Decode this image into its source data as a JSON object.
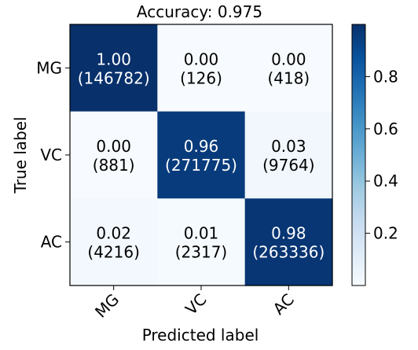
{
  "chart_data": {
    "type": "heatmap",
    "title": "Accuracy: 0.975",
    "xlabel": "Predicted label",
    "ylabel": "True label",
    "x_categories": [
      "MG",
      "VC",
      "AC"
    ],
    "y_categories": [
      "MG",
      "VC",
      "AC"
    ],
    "cells": [
      [
        {
          "value": "1.00",
          "count": "(146782)"
        },
        {
          "value": "0.00",
          "count": "(126)"
        },
        {
          "value": "0.00",
          "count": "(418)"
        }
      ],
      [
        {
          "value": "0.00",
          "count": "(881)"
        },
        {
          "value": "0.96",
          "count": "(271775)"
        },
        {
          "value": "0.03",
          "count": "(9764)"
        }
      ],
      [
        {
          "value": "0.02",
          "count": "(4216)"
        },
        {
          "value": "0.01",
          "count": "(2317)"
        },
        {
          "value": "0.98",
          "count": "(263336)"
        }
      ]
    ],
    "colormap": "Blues",
    "colorbar": {
      "range": [
        0,
        1
      ],
      "ticks": [
        "0.2",
        "0.4",
        "0.6",
        "0.8"
      ],
      "tick_values": [
        0.2,
        0.4,
        0.6,
        0.8
      ]
    },
    "colors": {
      "low": "#f7fbff",
      "high": "#08306b",
      "text_dark": "#000000",
      "text_light": "#ffffff"
    }
  }
}
